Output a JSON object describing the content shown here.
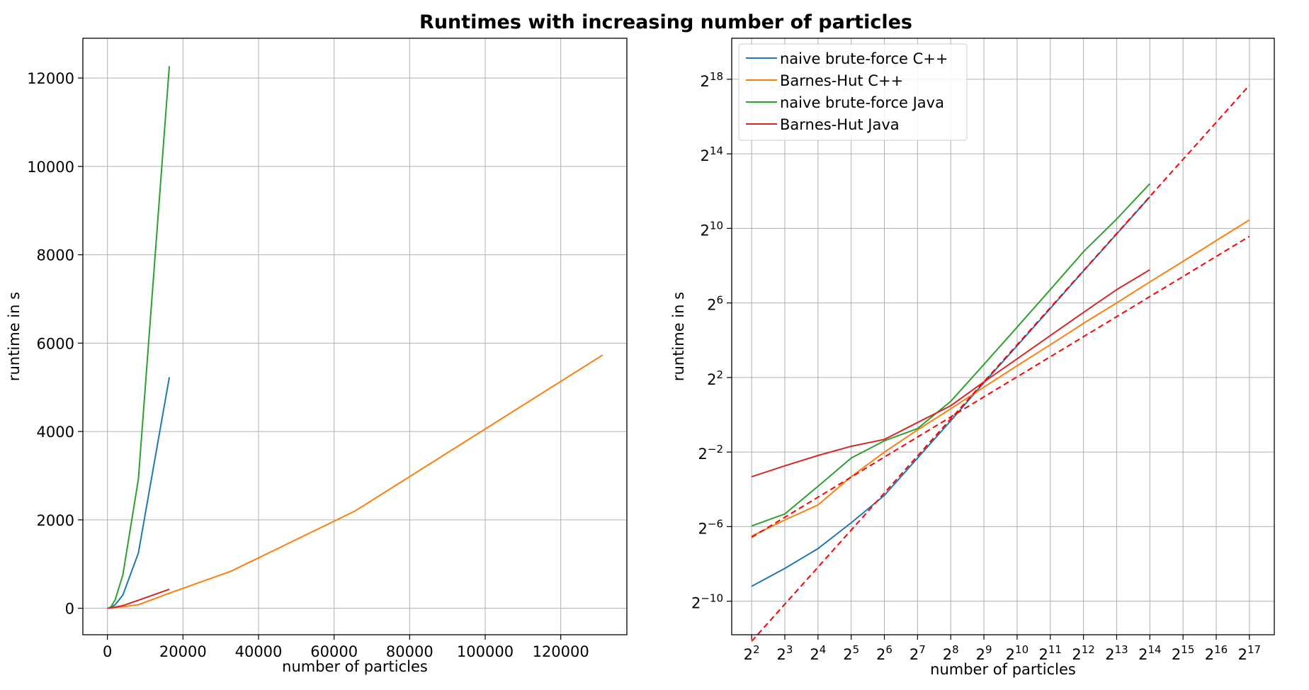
{
  "chart_data": [
    {
      "type": "line",
      "title": "Runtimes with increasing number of particles",
      "xlabel": "number of particles",
      "ylabel": "runtime in s",
      "xlim": [
        -6500,
        137500
      ],
      "ylim": [
        -600,
        12900
      ],
      "xticks": [
        0,
        20000,
        40000,
        60000,
        80000,
        100000,
        120000
      ],
      "xtick_labels": [
        "0",
        "20000",
        "40000",
        "60000",
        "80000",
        "100000",
        "120000"
      ],
      "yticks": [
        0,
        2000,
        4000,
        6000,
        8000,
        10000,
        12000
      ],
      "ytick_labels": [
        "0",
        "2000",
        "4000",
        "6000",
        "8000",
        "10000",
        "12000"
      ],
      "grid": true,
      "series": [
        {
          "name": "naive brute-force C++",
          "color": "#1f77b4",
          "x": [
            4,
            8,
            16,
            32,
            64,
            128,
            256,
            512,
            1024,
            2048,
            4096,
            8192,
            16384
          ],
          "y": [
            0.0017,
            0.0033,
            0.0069,
            0.018,
            0.04,
            0.1,
            0.6,
            4.8,
            20,
            80,
            300,
            1250,
            5230
          ]
        },
        {
          "name": "Barnes-Hut C++",
          "color": "#ff7f0e",
          "x": [
            4,
            8,
            16,
            32,
            64,
            128,
            256,
            512,
            1024,
            2048,
            4096,
            8192,
            16384,
            32768,
            65536,
            131072
          ],
          "y": [
            0.011,
            0.02,
            0.04,
            0.12,
            0.3,
            0.8,
            2,
            4.5,
            9,
            18,
            36,
            80,
            340,
            840,
            2200,
            5730
          ]
        },
        {
          "name": "naive brute-force Java",
          "color": "#2ca02c",
          "x": [
            4,
            8,
            16,
            32,
            64,
            128,
            256,
            512,
            1024,
            2048,
            4096,
            8192,
            16384
          ],
          "y": [
            0.015,
            0.025,
            0.08,
            0.25,
            0.5,
            0.9,
            2.4,
            10,
            44,
            190,
            760,
            2920,
            12270
          ]
        },
        {
          "name": "Barnes-Hut Java",
          "color": "#d62728",
          "x": [
            4,
            8,
            16,
            32,
            64,
            128,
            256,
            512,
            1024,
            2048,
            4096,
            8192,
            16384
          ],
          "y": [
            0.1,
            0.15,
            0.22,
            0.31,
            0.4,
            0.9,
            2,
            5,
            10,
            25,
            60,
            180,
            430
          ]
        }
      ]
    },
    {
      "type": "line",
      "xscale": "log2",
      "yscale": "log2",
      "xlabel": "number of particles",
      "ylabel": "runtime in s",
      "xlim_exp": [
        1.4,
        17.75
      ],
      "ylim_exp": [
        -11.8,
        20.2
      ],
      "xtick_labels": [
        {
          "base": "2",
          "exp": "2"
        },
        {
          "base": "2",
          "exp": "3"
        },
        {
          "base": "2",
          "exp": "4"
        },
        {
          "base": "2",
          "exp": "5"
        },
        {
          "base": "2",
          "exp": "6"
        },
        {
          "base": "2",
          "exp": "7"
        },
        {
          "base": "2",
          "exp": "8"
        },
        {
          "base": "2",
          "exp": "9"
        },
        {
          "base": "2",
          "exp": "10"
        },
        {
          "base": "2",
          "exp": "11"
        },
        {
          "base": "2",
          "exp": "12"
        },
        {
          "base": "2",
          "exp": "13"
        },
        {
          "base": "2",
          "exp": "14"
        },
        {
          "base": "2",
          "exp": "15"
        },
        {
          "base": "2",
          "exp": "16"
        },
        {
          "base": "2",
          "exp": "17"
        }
      ],
      "ytick_labels": [
        {
          "base": "2",
          "exp": "18"
        },
        {
          "base": "2",
          "exp": "14"
        },
        {
          "base": "2",
          "exp": "10"
        },
        {
          "base": "2",
          "exp": "6"
        },
        {
          "base": "2",
          "exp": "2"
        },
        {
          "base": "2",
          "exp": "−2"
        },
        {
          "base": "2",
          "exp": "−6"
        },
        {
          "base": "2",
          "exp": "−10"
        }
      ],
      "grid": true,
      "legend": {
        "position": "top-left",
        "entries": [
          {
            "label": "naive brute-force C++",
            "color": "#1f77b4"
          },
          {
            "label": "Barnes-Hut C++",
            "color": "#ff7f0e"
          },
          {
            "label": "naive brute-force Java",
            "color": "#2ca02c"
          },
          {
            "label": "Barnes-Hut Java",
            "color": "#d62728"
          }
        ]
      },
      "series": [
        {
          "name": "naive brute-force C++",
          "color": "#1f77b4",
          "x": [
            4,
            8,
            16,
            32,
            64,
            128,
            256,
            512,
            1024,
            2048,
            4096,
            8192,
            16384
          ],
          "y": [
            0.0017,
            0.0033,
            0.0069,
            0.018,
            0.05,
            0.2,
            0.8,
            3.3,
            13,
            52,
            210,
            830,
            3300
          ]
        },
        {
          "name": "Barnes-Hut C++",
          "color": "#ff7f0e",
          "x": [
            4,
            8,
            16,
            32,
            64,
            128,
            256,
            512,
            1024,
            2048,
            4096,
            8192,
            16384,
            32768,
            65536,
            131072
          ],
          "y": [
            0.011,
            0.02,
            0.035,
            0.1,
            0.25,
            0.57,
            1.25,
            2.8,
            6.2,
            13.5,
            30,
            64,
            140,
            300,
            650,
            1400
          ]
        },
        {
          "name": "naive brute-force Java",
          "color": "#2ca02c",
          "x": [
            4,
            8,
            16,
            32,
            64,
            128,
            256,
            512,
            1024,
            2048,
            4096,
            8192,
            16384
          ],
          "y": [
            0.016,
            0.025,
            0.07,
            0.2,
            0.38,
            0.6,
            1.65,
            6.5,
            26,
            105,
            430,
            1450,
            5400
          ]
        },
        {
          "name": "Barnes-Hut Java",
          "color": "#d62728",
          "x": [
            4,
            8,
            16,
            32,
            64,
            128,
            256,
            512,
            1024,
            2048,
            4096,
            8192,
            16384
          ],
          "y": [
            0.1,
            0.15,
            0.22,
            0.31,
            0.4,
            0.75,
            1.4,
            3.4,
            8,
            19,
            45,
            105,
            220
          ]
        }
      ],
      "reference_lines": [
        {
          "style": "dashed",
          "color": "#ff0000",
          "x": [
            4,
            131072
          ],
          "y": [
            0.00022,
            209715
          ]
        },
        {
          "style": "dashed",
          "color": "#ff0000",
          "x": [
            4,
            131072
          ],
          "y": [
            0.0105,
            760
          ]
        }
      ]
    }
  ]
}
